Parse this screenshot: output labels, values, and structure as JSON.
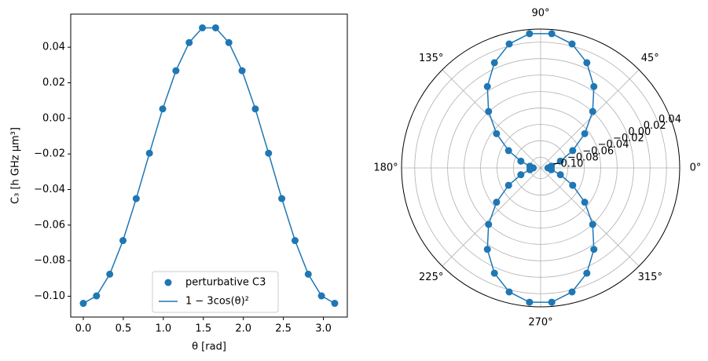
{
  "chart_data": [
    {
      "type": "line",
      "xlabel": "θ [rad]",
      "ylabel": "C₃ [h GHz μm³]",
      "x": [
        0,
        0.1653,
        0.3307,
        0.496,
        0.6614,
        0.8267,
        0.9921,
        1.1574,
        1.3228,
        1.4881,
        1.6535,
        1.8188,
        1.9842,
        2.1495,
        2.3149,
        2.4802,
        2.6456,
        2.8109,
        2.9762,
        3.1416
      ],
      "series": [
        {
          "name": "perturbative C3",
          "color": "#1f77b4",
          "mode": "markers",
          "values": [
            -0.104,
            -0.0998,
            -0.0876,
            -0.0687,
            -0.0451,
            -0.0196,
            0.0053,
            0.0268,
            0.0426,
            0.0509,
            0.0509,
            0.0426,
            0.0268,
            0.0053,
            -0.0196,
            -0.0451,
            -0.0687,
            -0.0876,
            -0.0998,
            -0.104
          ]
        },
        {
          "name": "1 − 3cos(θ)²",
          "color": "#1f77b4",
          "mode": "lines",
          "values": [
            -0.104,
            -0.0998,
            -0.0876,
            -0.0687,
            -0.0451,
            -0.0196,
            0.0053,
            0.0268,
            0.0426,
            0.0509,
            0.0509,
            0.0426,
            0.0268,
            0.0053,
            -0.0196,
            -0.0451,
            -0.0687,
            -0.0876,
            -0.0998,
            -0.104
          ]
        }
      ],
      "xlim": [
        -0.157,
        3.299
      ],
      "ylim": [
        -0.1117,
        0.0586
      ],
      "xticks": [
        {
          "value": 0,
          "label": "0.0"
        },
        {
          "value": 0.5,
          "label": "0.5"
        },
        {
          "value": 1,
          "label": "1.0"
        },
        {
          "value": 1.5,
          "label": "1.5"
        },
        {
          "value": 2,
          "label": "2.0"
        },
        {
          "value": 2.5,
          "label": "2.5"
        },
        {
          "value": 3,
          "label": "3.0"
        }
      ],
      "yticks": [
        {
          "value": -0.1,
          "label": "−0.10"
        },
        {
          "value": -0.08,
          "label": "−0.08"
        },
        {
          "value": -0.06,
          "label": "−0.06"
        },
        {
          "value": -0.04,
          "label": "−0.04"
        },
        {
          "value": -0.02,
          "label": "−0.02"
        },
        {
          "value": 0,
          "label": "0.00"
        },
        {
          "value": 0.02,
          "label": "0.02"
        },
        {
          "value": 0.04,
          "label": "0.04"
        }
      ],
      "legend": "lower center"
    },
    {
      "type": "polar",
      "theta": [
        0,
        9.474,
        18.947,
        28.421,
        37.895,
        47.368,
        56.842,
        66.316,
        75.789,
        85.263,
        94.737,
        104.211,
        113.684,
        123.158,
        132.632,
        142.105,
        151.579,
        161.053,
        170.526,
        180,
        180,
        189.474,
        198.947,
        208.421,
        217.895,
        227.368,
        236.842,
        246.316,
        255.789,
        265.263,
        274.737,
        284.211,
        293.684,
        303.158,
        312.632,
        322.105,
        331.579,
        341.053,
        350.526,
        360
      ],
      "series": [
        {
          "color": "#1f77b4",
          "mode": "lines+markers",
          "values": [
            -0.104,
            -0.0998,
            -0.0876,
            -0.0687,
            -0.0451,
            -0.0196,
            0.0053,
            0.0268,
            0.0426,
            0.0509,
            0.0509,
            0.0426,
            0.0268,
            0.0053,
            -0.0196,
            -0.0451,
            -0.0687,
            -0.0876,
            -0.0998,
            -0.104,
            -0.104,
            -0.0998,
            -0.0876,
            -0.0687,
            -0.0451,
            -0.0196,
            0.0053,
            0.0268,
            0.0426,
            0.0509,
            0.0509,
            0.0426,
            0.0268,
            0.0053,
            -0.0196,
            -0.0451,
            -0.0687,
            -0.0876,
            -0.0998,
            -0.104
          ]
        }
      ],
      "rlim": [
        -0.113,
        0.056
      ],
      "rticks": [
        {
          "value": -0.1,
          "label": "−0.10"
        },
        {
          "value": -0.08,
          "label": "−0.08"
        },
        {
          "value": -0.06,
          "label": "−0.06"
        },
        {
          "value": -0.04,
          "label": "−0.04"
        },
        {
          "value": -0.02,
          "label": "−0.02"
        },
        {
          "value": 0,
          "label": "0.00"
        },
        {
          "value": 0.02,
          "label": "0.02"
        },
        {
          "value": 0.04,
          "label": "0.04"
        }
      ],
      "thetaticks": [
        {
          "value": 0,
          "label": "0°"
        },
        {
          "value": 45,
          "label": "45°"
        },
        {
          "value": 90,
          "label": "90°"
        },
        {
          "value": 135,
          "label": "135°"
        },
        {
          "value": 180,
          "label": "180°"
        },
        {
          "value": 225,
          "label": "225°"
        },
        {
          "value": 270,
          "label": "270°"
        },
        {
          "value": 315,
          "label": "315°"
        }
      ],
      "grid": true
    }
  ]
}
